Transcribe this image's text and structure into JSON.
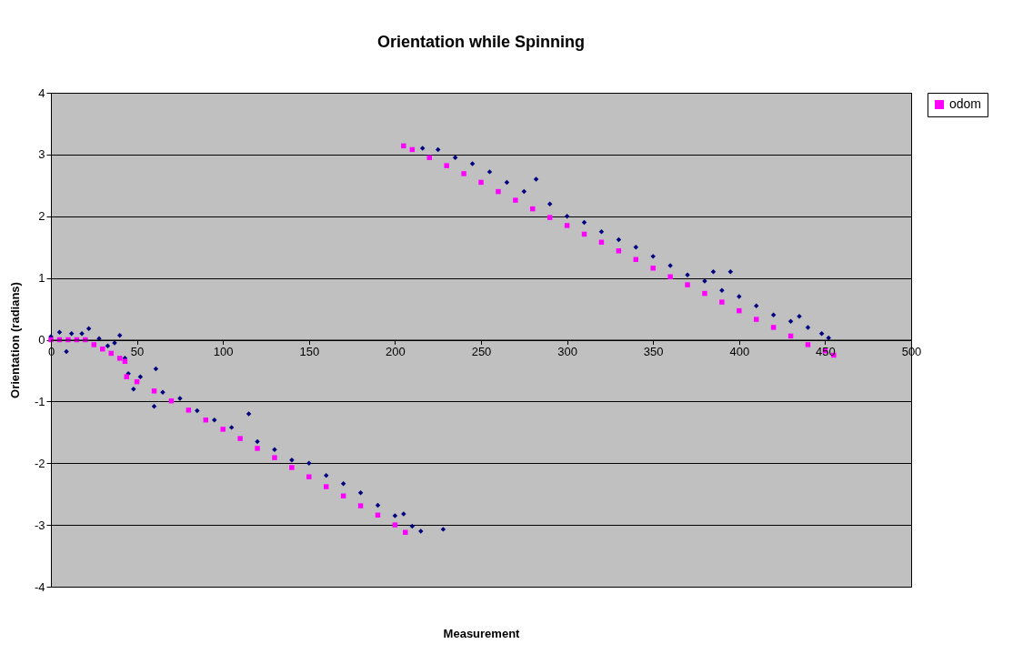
{
  "chart_data": {
    "type": "scatter",
    "title": "Orientation while Spinning",
    "xlabel": "Measurement",
    "ylabel": "Orientation (radians)",
    "xlim": [
      0,
      500
    ],
    "xticks": [
      0,
      50,
      100,
      150,
      200,
      250,
      300,
      350,
      400,
      450,
      500
    ],
    "ylim": [
      -4,
      4
    ],
    "yticks": [
      -4,
      -3,
      -2,
      -1,
      0,
      1,
      2,
      3,
      4
    ],
    "grid": "y",
    "legend": "right",
    "series": [
      {
        "color": "#000080",
        "marker": "diamond",
        "x": [
          0,
          5,
          9,
          12,
          18,
          22,
          28,
          33,
          37,
          40,
          43,
          45,
          48,
          52,
          60,
          61,
          65,
          75,
          85,
          95,
          105,
          115,
          120,
          130,
          140,
          150,
          160,
          170,
          180,
          190,
          200,
          205,
          210,
          215,
          228,
          216,
          225,
          235,
          245,
          255,
          265,
          275,
          282,
          290,
          300,
          310,
          320,
          330,
          340,
          350,
          360,
          370,
          380,
          385,
          390,
          395,
          400,
          410,
          420,
          430,
          435,
          440,
          448,
          452
        ],
        "values": [
          0.05,
          0.12,
          -0.19,
          0.1,
          0.1,
          0.18,
          0.02,
          -0.1,
          -0.05,
          0.07,
          -0.3,
          -0.55,
          -0.8,
          -0.6,
          -1.08,
          -0.47,
          -0.85,
          -0.95,
          -1.15,
          -1.3,
          -1.42,
          -1.2,
          -1.65,
          -1.78,
          -1.95,
          -2.0,
          -2.2,
          -2.33,
          -2.48,
          -2.68,
          -2.85,
          -2.82,
          -3.02,
          -3.1,
          -3.07,
          3.1,
          3.08,
          2.95,
          2.85,
          2.72,
          2.55,
          2.4,
          2.6,
          2.2,
          2.0,
          1.9,
          1.75,
          1.62,
          1.5,
          1.35,
          1.2,
          1.05,
          0.95,
          1.1,
          0.8,
          1.1,
          0.7,
          0.55,
          0.4,
          0.3,
          0.38,
          0.2,
          0.1,
          0.03
        ]
      },
      {
        "name": "odom",
        "color": "#ff00ff",
        "marker": "square",
        "x": [
          0,
          5,
          10,
          15,
          20,
          25,
          30,
          35,
          40,
          43,
          44,
          50,
          60,
          70,
          80,
          90,
          100,
          110,
          120,
          130,
          140,
          150,
          160,
          170,
          180,
          190,
          200,
          206,
          205,
          210,
          220,
          230,
          240,
          250,
          260,
          270,
          280,
          290,
          300,
          310,
          320,
          330,
          340,
          350,
          360,
          370,
          380,
          390,
          400,
          410,
          420,
          430,
          440,
          450,
          455
        ],
        "values": [
          0,
          0,
          0,
          0,
          0,
          -0.08,
          -0.15,
          -0.22,
          -0.3,
          -0.35,
          -0.6,
          -0.68,
          -0.83,
          -0.99,
          -1.14,
          -1.3,
          -1.45,
          -1.6,
          -1.76,
          -1.91,
          -2.07,
          -2.22,
          -2.38,
          -2.53,
          -2.69,
          -2.84,
          -3.0,
          -3.12,
          3.14,
          3.08,
          2.95,
          2.82,
          2.69,
          2.55,
          2.4,
          2.26,
          2.12,
          1.98,
          1.85,
          1.71,
          1.58,
          1.44,
          1.3,
          1.16,
          1.02,
          0.89,
          0.75,
          0.61,
          0.47,
          0.33,
          0.2,
          0.06,
          -0.08,
          -0.18,
          -0.25
        ]
      }
    ]
  }
}
